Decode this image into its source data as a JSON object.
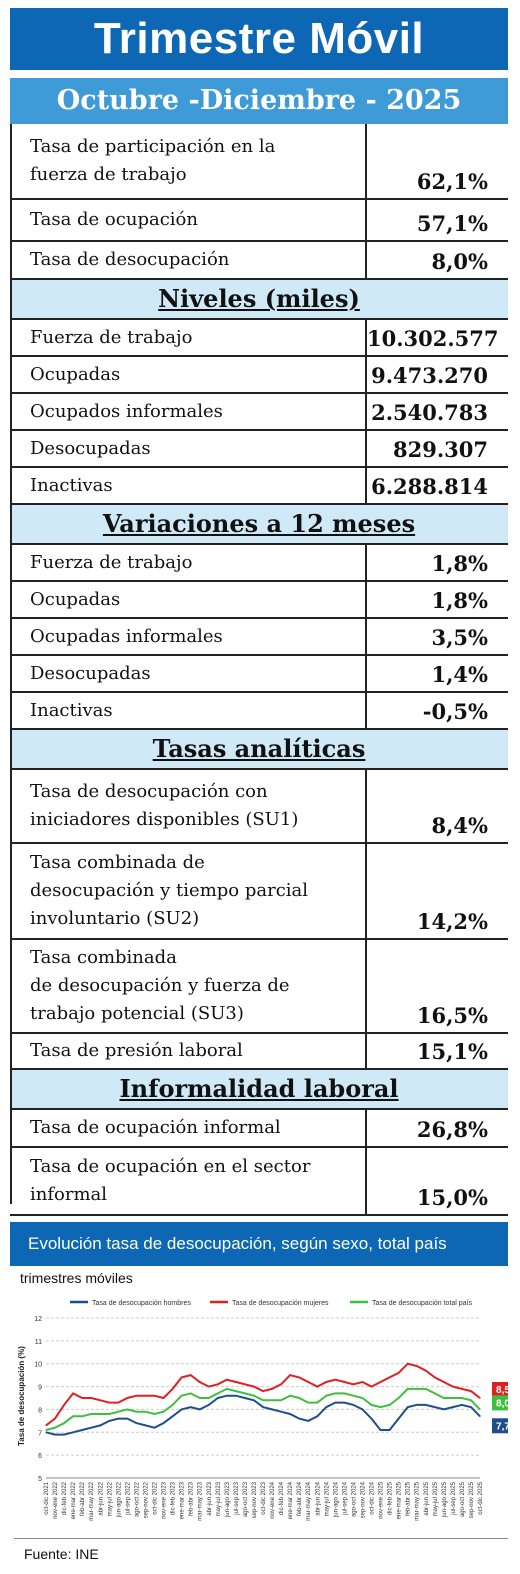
{
  "header": {
    "title": "Trimestre Móvil",
    "period": "Octubre -Diciembre - 2025"
  },
  "rates": [
    {
      "label_lines": [
        "Tasa de participación en la",
        "fuerza de trabajo"
      ],
      "value": "62,1%"
    },
    {
      "label_lines": [
        "Tasa de ocupación"
      ],
      "value": "57,1%"
    },
    {
      "label_lines": [
        "Tasa de desocupación"
      ],
      "value": "8,0%"
    }
  ],
  "niveles": {
    "title": "Niveles  (miles)",
    "rows": [
      {
        "label": "Fuerza de trabajo",
        "value": "10.302.577"
      },
      {
        "label": "Ocupadas",
        "value": "9.473.270"
      },
      {
        "label": "Ocupados informales",
        "value": "2.540.783"
      },
      {
        "label": "Desocupadas",
        "value": "829.307"
      },
      {
        "label": "Inactivas",
        "value": "6.288.814"
      }
    ]
  },
  "variaciones": {
    "title": "Variaciones a 12 meses",
    "rows": [
      {
        "label": "Fuerza de trabajo",
        "value": "1,8%"
      },
      {
        "label": "Ocupadas",
        "value": "1,8%"
      },
      {
        "label": "Ocupadas informales",
        "value": "3,5%"
      },
      {
        "label": "Desocupadas",
        "value": "1,4%"
      },
      {
        "label": "Inactivas",
        "value": "-0,5%"
      }
    ]
  },
  "tasas_analiticas": {
    "title": "Tasas  analíticas",
    "rows": [
      {
        "label_lines": [
          "Tasa de desocupación con",
          "iniciadores disponibles (SU1)"
        ],
        "value": "8,4%"
      },
      {
        "label_lines": [
          "Tasa combinada de",
          "desocupación y tiempo parcial",
          "involuntario (SU2)"
        ],
        "value": "14,2%"
      },
      {
        "label_lines": [
          "Tasa combinada",
          "de desocupación y fuerza de",
          "trabajo potencial (SU3)"
        ],
        "value": "16,5%"
      },
      {
        "label_lines": [
          "Tasa de presión laboral"
        ],
        "value": "15,1%"
      }
    ]
  },
  "informalidad": {
    "title": "Informalidad  laboral",
    "rows": [
      {
        "label_lines": [
          "Tasa de ocupación informal"
        ],
        "value": "26,8%"
      },
      {
        "label_lines": [
          "Tasa de ocupación en el sector",
          "informal"
        ],
        "value": "15,0%"
      }
    ]
  },
  "chart_section": {
    "title": "Evolución tasa de desocupación, según sexo, total país",
    "subtitle": "trimestres móviles"
  },
  "source": "Fuente: INE",
  "colors": {
    "title_bg": "#0d67b4",
    "period_bg": "#3f9ad8",
    "section_bg": "#cfe9f7",
    "men": "#1f4e8c",
    "women": "#e02020",
    "total": "#3fbf3f"
  },
  "chart_data": {
    "type": "line",
    "ylabel": "Tasa de desocupación (%)",
    "ylim": [
      5,
      12
    ],
    "yticks": [
      5,
      6,
      7,
      8,
      9,
      10,
      11,
      12
    ],
    "grid": true,
    "legend_position": "top",
    "x": [
      "oct-dic 2021",
      "nov-ene 2022",
      "dic-feb 2022",
      "ene-mar 2022",
      "feb-abr 2022",
      "mar-may 2022",
      "abr-jun 2022",
      "may-jul 2022",
      "jun-ago 2022",
      "jul-sep 2022",
      "ago-oct 2022",
      "sep-nov 2022",
      "oct-dic 2022",
      "nov-ene 2023",
      "dic-feb 2023",
      "ene-mar 2023",
      "feb-abr 2023",
      "mar-may 2023",
      "abr-jun 2023",
      "may-jul 2023",
      "jun-ago 2023",
      "jul-sep 2023",
      "ago-oct 2023",
      "sep-nov 2023",
      "oct-dic 2023",
      "nov-ene 2024",
      "dic-feb 2024",
      "ene-mar 2024",
      "feb-abr 2024",
      "mar-may 2024",
      "abr-jun 2024",
      "may-jul 2024",
      "jun-ago 2024",
      "jul-sep 2024",
      "ago-oct 2024",
      "sep-nov 2024",
      "oct-dic 2024",
      "nov-ene 2025",
      "dic-feb 2025",
      "ene-mar 2025",
      "feb-abr 2025",
      "mar-may 2025",
      "abr-jun 2025",
      "may-jul 2025",
      "jun-ago 2025",
      "jul-sep 2025",
      "ago-oct 2025",
      "sep-nov 2025",
      "oct-dic 2025"
    ],
    "series": [
      {
        "name": "Tasa de desocupación hombres",
        "color": "#1f4e8c",
        "values": [
          7.0,
          6.9,
          6.9,
          7.0,
          7.1,
          7.2,
          7.3,
          7.5,
          7.6,
          7.6,
          7.4,
          7.3,
          7.2,
          7.4,
          7.7,
          8.0,
          8.1,
          8.0,
          8.2,
          8.5,
          8.6,
          8.6,
          8.5,
          8.4,
          8.1,
          8.0,
          7.9,
          7.8,
          7.6,
          7.5,
          7.7,
          8.1,
          8.3,
          8.3,
          8.2,
          8.0,
          7.6,
          7.1,
          7.1,
          7.6,
          8.1,
          8.2,
          8.2,
          8.1,
          8.0,
          8.1,
          8.2,
          8.1,
          7.7
        ]
      },
      {
        "name": "Tasa de desocupación mujeres",
        "color": "#e02020",
        "values": [
          7.3,
          7.6,
          8.2,
          8.7,
          8.5,
          8.5,
          8.4,
          8.3,
          8.3,
          8.5,
          8.6,
          8.6,
          8.6,
          8.5,
          8.9,
          9.4,
          9.5,
          9.2,
          9.0,
          9.1,
          9.3,
          9.2,
          9.1,
          9.0,
          8.8,
          8.9,
          9.1,
          9.5,
          9.4,
          9.2,
          9.0,
          9.2,
          9.3,
          9.2,
          9.1,
          9.2,
          9.0,
          9.2,
          9.4,
          9.6,
          10.0,
          9.9,
          9.7,
          9.4,
          9.2,
          9.0,
          8.9,
          8.8,
          8.5
        ]
      },
      {
        "name": "Tasa de desocupación total país",
        "color": "#3fbf3f",
        "values": [
          7.1,
          7.2,
          7.4,
          7.7,
          7.7,
          7.8,
          7.8,
          7.8,
          7.9,
          8.0,
          7.9,
          7.9,
          7.8,
          7.9,
          8.2,
          8.6,
          8.7,
          8.5,
          8.5,
          8.7,
          8.9,
          8.8,
          8.7,
          8.6,
          8.4,
          8.4,
          8.4,
          8.6,
          8.5,
          8.3,
          8.3,
          8.6,
          8.7,
          8.7,
          8.6,
          8.5,
          8.2,
          8.1,
          8.2,
          8.5,
          8.9,
          8.9,
          8.9,
          8.7,
          8.5,
          8.5,
          8.5,
          8.4,
          8.0
        ]
      }
    ],
    "end_labels": [
      {
        "text": "8,5",
        "series": 1
      },
      {
        "text": "8,0",
        "series": 2
      },
      {
        "text": "7,7",
        "series": 0
      }
    ]
  }
}
